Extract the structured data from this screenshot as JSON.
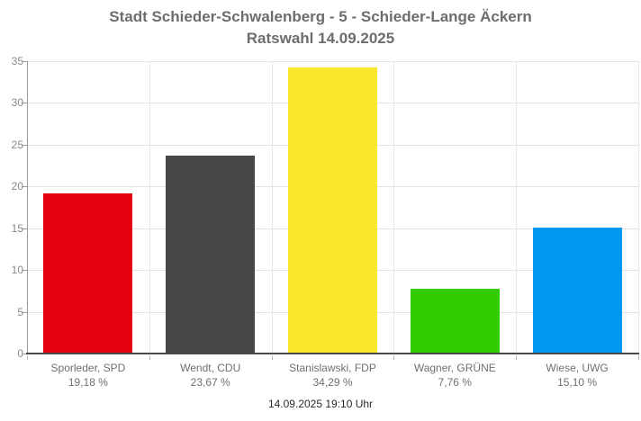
{
  "chart_data": {
    "type": "bar",
    "title": "Stadt Schieder-Schwalenberg - 5 - Schieder-Lange Äckern",
    "subtitle": "Ratswahl 14.09.2025",
    "footer": "14.09.2025 19:10 Uhr",
    "xlabel": "",
    "ylabel": "",
    "ylim": [
      0,
      35
    ],
    "ytick_step": 5,
    "ytick_labels": [
      "0",
      "5",
      "10",
      "15",
      "20",
      "25",
      "30",
      "35"
    ],
    "grid": true,
    "legend": "none",
    "categories": [
      "Sporleder, SPD",
      "Wendt, CDU",
      "Stanislawski, FDP",
      "Wagner, GRÜNE",
      "Wiese, UWG"
    ],
    "values": [
      19.18,
      23.67,
      34.29,
      7.76,
      15.1
    ],
    "bars": [
      {
        "candidate": "Sporleder, SPD",
        "party": "SPD",
        "value": 19.18,
        "value_label": "19,18 %",
        "color": "#e3000f"
      },
      {
        "candidate": "Wendt, CDU",
        "party": "CDU",
        "value": 23.67,
        "value_label": "23,67 %",
        "color": "#474747"
      },
      {
        "candidate": "Stanislawski, FDP",
        "party": "FDP",
        "value": 34.29,
        "value_label": "34,29 %",
        "color": "#fae72b"
      },
      {
        "candidate": "Wagner, GRÜNE",
        "party": "GRÜNE",
        "value": 7.76,
        "value_label": "7,76 %",
        "color": "#33cc00"
      },
      {
        "candidate": "Wiese, UWG",
        "party": "UWG",
        "value": 15.1,
        "value_label": "15,10 %",
        "color": "#0099f2"
      }
    ],
    "colors": {
      "title_text": "#6d6d6d",
      "axis_line": "#9a9a9a",
      "baseline": "#4a4a4a",
      "gridline": "#e3e3e3",
      "tick_label": "#8a8a8a",
      "category_label": "#6f6f6f",
      "footer_text": "#2a2a2a",
      "background": "#ffffff"
    }
  }
}
